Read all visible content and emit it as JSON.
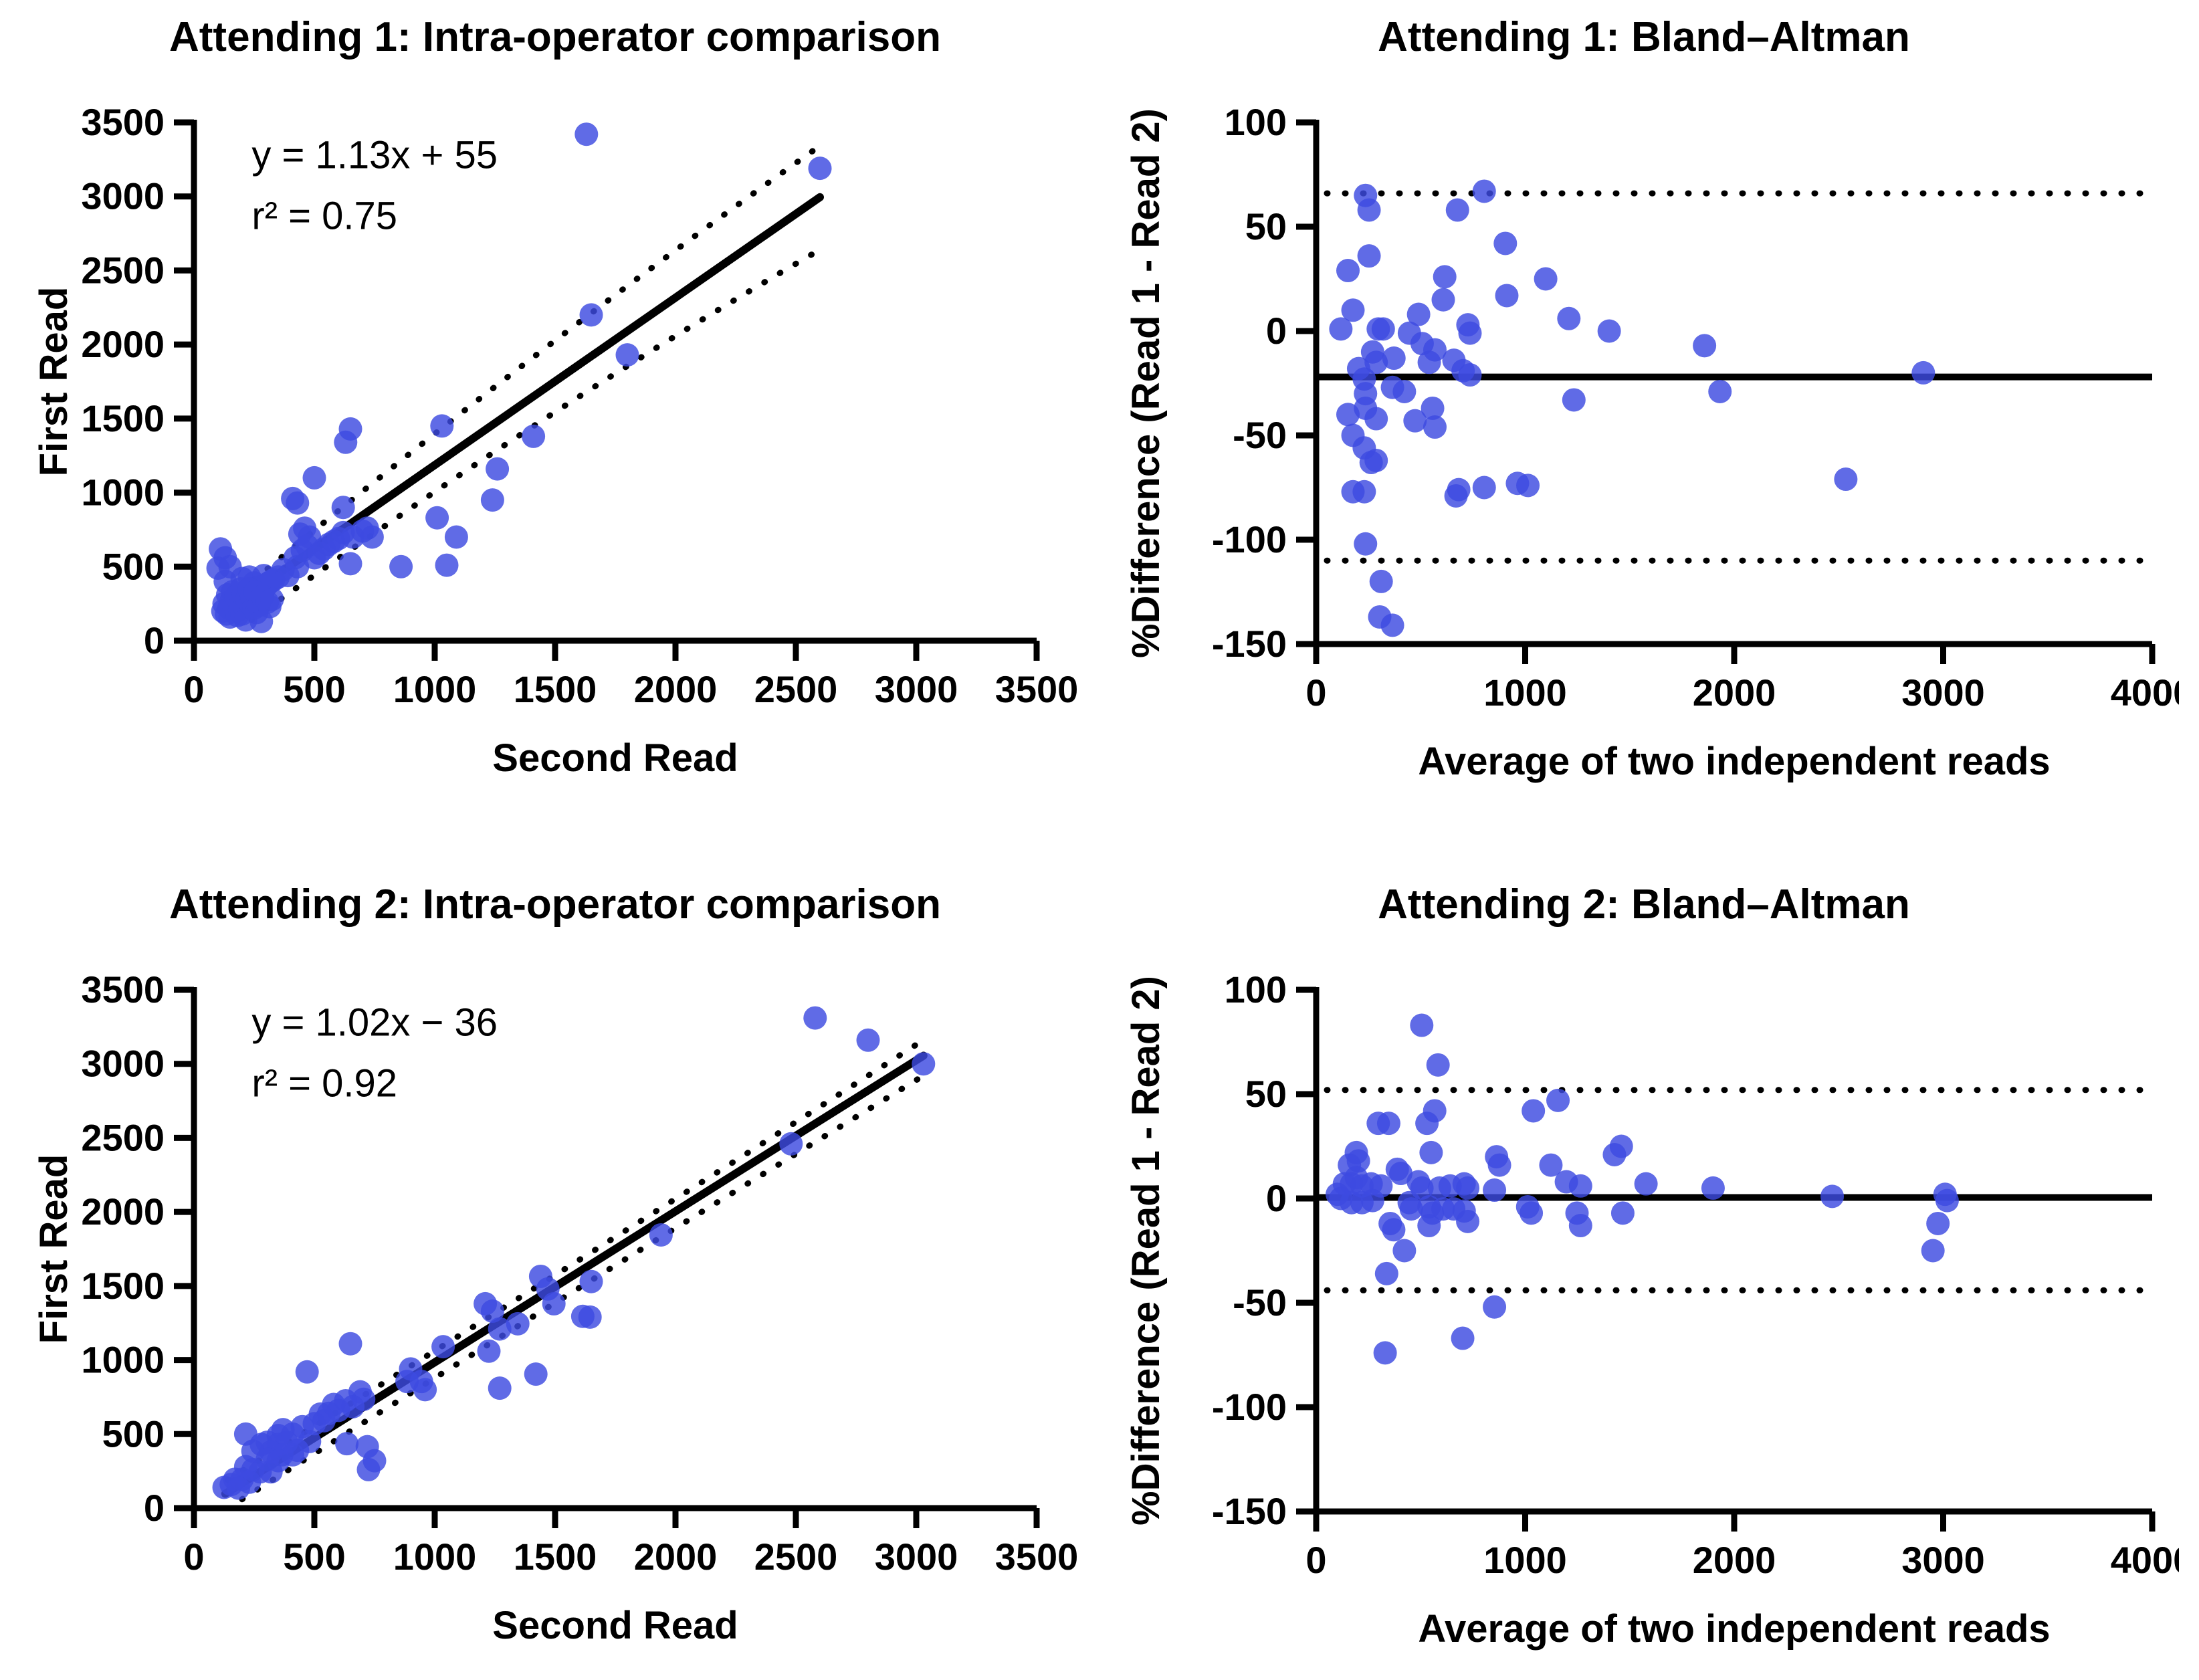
{
  "figure": {
    "background": "#ffffff",
    "ink_color": "#000000",
    "point_fill": "#3D4BE0"
  },
  "chart_data": [
    {
      "id": "attending1-scatter",
      "type": "scatter",
      "kind": "xy",
      "title": "Attending 1: Intra-operator comparison",
      "xlabel": "Second Read",
      "ylabel": "First Read",
      "xlim": [
        0,
        3500
      ],
      "ylim": [
        0,
        3500
      ],
      "xticks": [
        0,
        500,
        1000,
        1500,
        2000,
        2500,
        3000,
        3500
      ],
      "yticks": [
        0,
        500,
        1000,
        1500,
        2000,
        2500,
        3000,
        3500
      ],
      "grid": false,
      "annotations": [
        {
          "text": "y = 1.13x + 55",
          "x": 240,
          "y": 3280
        },
        {
          "text": "r² = 0.75",
          "x": 240,
          "y": 2870
        }
      ],
      "regression": {
        "solid": [
          [
            150,
            225
          ],
          [
            2600,
            2995
          ]
        ],
        "band_upper": [
          [
            190,
            330
          ],
          [
            1350,
            1900
          ],
          [
            2590,
            3330
          ]
        ],
        "band_lower": [
          [
            240,
            140
          ],
          [
            1450,
            1560
          ],
          [
            2600,
            2640
          ]
        ]
      },
      "points": [
        [
          1630,
          3420
        ],
        [
          2600,
          3190
        ],
        [
          1650,
          2200
        ],
        [
          1800,
          1930
        ],
        [
          1030,
          1450
        ],
        [
          650,
          1430
        ],
        [
          630,
          1340
        ],
        [
          1410,
          1380
        ],
        [
          1260,
          1160
        ],
        [
          500,
          1100
        ],
        [
          410,
          960
        ],
        [
          430,
          930
        ],
        [
          1240,
          950
        ],
        [
          1010,
          830
        ],
        [
          1090,
          700
        ],
        [
          620,
          900
        ],
        [
          440,
          720
        ],
        [
          620,
          730
        ],
        [
          740,
          700
        ],
        [
          460,
          760
        ],
        [
          480,
          700
        ],
        [
          700,
          740
        ],
        [
          720,
          760
        ],
        [
          660,
          700
        ],
        [
          420,
          560
        ],
        [
          430,
          500
        ],
        [
          450,
          610
        ],
        [
          470,
          640
        ],
        [
          500,
          560
        ],
        [
          520,
          590
        ],
        [
          540,
          620
        ],
        [
          560,
          650
        ],
        [
          580,
          670
        ],
        [
          600,
          690
        ],
        [
          390,
          440
        ],
        [
          370,
          480
        ],
        [
          350,
          430
        ],
        [
          330,
          410
        ],
        [
          310,
          390
        ],
        [
          290,
          440
        ],
        [
          230,
          430
        ],
        [
          200,
          420
        ],
        [
          250,
          390
        ],
        [
          270,
          360
        ],
        [
          300,
          370
        ],
        [
          320,
          400
        ],
        [
          110,
          620
        ],
        [
          100,
          490
        ],
        [
          130,
          560
        ],
        [
          130,
          400
        ],
        [
          195,
          350
        ],
        [
          150,
          500
        ],
        [
          650,
          520
        ],
        [
          860,
          500
        ],
        [
          1050,
          510
        ],
        [
          120,
          200
        ],
        [
          125,
          250
        ],
        [
          135,
          180
        ],
        [
          140,
          310
        ],
        [
          145,
          220
        ],
        [
          150,
          160
        ],
        [
          155,
          270
        ],
        [
          160,
          330
        ],
        [
          170,
          240
        ],
        [
          175,
          300
        ],
        [
          180,
          170
        ],
        [
          190,
          210
        ],
        [
          195,
          260
        ],
        [
          200,
          180
        ],
        [
          205,
          320
        ],
        [
          210,
          230
        ],
        [
          215,
          140
        ],
        [
          220,
          280
        ],
        [
          230,
          350
        ],
        [
          235,
          250
        ],
        [
          240,
          300
        ],
        [
          250,
          220
        ],
        [
          255,
          330
        ],
        [
          260,
          190
        ],
        [
          270,
          240
        ],
        [
          280,
          130
        ],
        [
          285,
          300
        ],
        [
          305,
          260
        ],
        [
          315,
          230
        ],
        [
          325,
          280
        ]
      ]
    },
    {
      "id": "attending1-bland-altman",
      "type": "scatter",
      "kind": "ba",
      "title": "Attending 1: Bland–Altman",
      "xlabel": "Average of two independent reads",
      "ylabel": "%Difference (Read 1 - Read 2)",
      "xlim": [
        0,
        4000
      ],
      "ylim": [
        -150,
        100
      ],
      "xticks": [
        0,
        1000,
        2000,
        3000,
        4000
      ],
      "yticks": [
        100,
        50,
        0,
        -50,
        -100,
        -150
      ],
      "grid": false,
      "mean_line": -22,
      "loa_upper": 66,
      "loa_lower": -110,
      "points": [
        [
          236,
          65
        ],
        [
          253,
          58
        ],
        [
          676,
          58
        ],
        [
          804,
          67
        ],
        [
          905,
          42
        ],
        [
          253,
          36
        ],
        [
          152,
          29
        ],
        [
          615,
          26
        ],
        [
          1098,
          25
        ],
        [
          912,
          17
        ],
        [
          608,
          15
        ],
        [
          176,
          10
        ],
        [
          490,
          8
        ],
        [
          1209,
          6
        ],
        [
          118,
          1
        ],
        [
          297,
          1
        ],
        [
          321,
          1
        ],
        [
          446,
          -1
        ],
        [
          726,
          3
        ],
        [
          736,
          -1
        ],
        [
          1402,
          0
        ],
        [
          507,
          -6
        ],
        [
          568,
          -9
        ],
        [
          1858,
          -7
        ],
        [
          270,
          -10
        ],
        [
          372,
          -13
        ],
        [
          287,
          -15
        ],
        [
          541,
          -15
        ],
        [
          659,
          -14
        ],
        [
          703,
          -19
        ],
        [
          203,
          -18
        ],
        [
          736,
          -21
        ],
        [
          2905,
          -20
        ],
        [
          230,
          -23
        ],
        [
          365,
          -27
        ],
        [
          422,
          -29
        ],
        [
          236,
          -30
        ],
        [
          1932,
          -29
        ],
        [
          236,
          -37
        ],
        [
          1233,
          -33
        ],
        [
          287,
          -42
        ],
        [
          557,
          -37
        ],
        [
          152,
          -40
        ],
        [
          473,
          -43
        ],
        [
          568,
          -46
        ],
        [
          176,
          -50
        ],
        [
          230,
          -56
        ],
        [
          287,
          -62
        ],
        [
          263,
          -63
        ],
        [
          176,
          -77
        ],
        [
          230,
          -77
        ],
        [
          669,
          -79
        ],
        [
          682,
          -76
        ],
        [
          804,
          -75
        ],
        [
          963,
          -73
        ],
        [
          1013,
          -74
        ],
        [
          2534,
          -71
        ],
        [
          236,
          -102
        ],
        [
          311,
          -120
        ],
        [
          304,
          -137
        ],
        [
          365,
          -141
        ]
      ]
    },
    {
      "id": "attending2-scatter",
      "type": "scatter",
      "kind": "xy",
      "title": "Attending 2: Intra-operator comparison",
      "xlabel": "Second Read",
      "ylabel": "First Read",
      "xlim": [
        0,
        3500
      ],
      "ylim": [
        0,
        3500
      ],
      "xticks": [
        0,
        500,
        1000,
        1500,
        2000,
        2500,
        3000,
        3500
      ],
      "yticks": [
        0,
        500,
        1000,
        1500,
        2000,
        2500,
        3000,
        3500
      ],
      "grid": false,
      "annotations": [
        {
          "text": "y = 1.02x − 36",
          "x": 240,
          "y": 3280
        },
        {
          "text": "r² = 0.92",
          "x": 240,
          "y": 2870
        }
      ],
      "regression": {
        "solid": [
          [
            130,
            97
          ],
          [
            3030,
            3055
          ]
        ],
        "band_upper": [
          [
            140,
            190
          ],
          [
            1580,
            1640
          ],
          [
            3010,
            3140
          ]
        ],
        "band_lower": [
          [
            200,
            60
          ],
          [
            1620,
            1520
          ],
          [
            3040,
            2930
          ]
        ]
      },
      "points": [
        [
          2580,
          3310
        ],
        [
          2800,
          3160
        ],
        [
          3030,
          3000
        ],
        [
          2480,
          2460
        ],
        [
          1940,
          1845
        ],
        [
          1440,
          1565
        ],
        [
          1470,
          1480
        ],
        [
          1650,
          1530
        ],
        [
          1495,
          1380
        ],
        [
          1210,
          1380
        ],
        [
          1240,
          1330
        ],
        [
          1615,
          1295
        ],
        [
          1645,
          1290
        ],
        [
          1270,
          1210
        ],
        [
          1345,
          1245
        ],
        [
          1035,
          1090
        ],
        [
          1225,
          1060
        ],
        [
          650,
          1110
        ],
        [
          470,
          920
        ],
        [
          1420,
          905
        ],
        [
          1270,
          810
        ],
        [
          900,
          940
        ],
        [
          885,
          855
        ],
        [
          945,
          855
        ],
        [
          960,
          800
        ],
        [
          690,
          785
        ],
        [
          705,
          735
        ],
        [
          630,
          725
        ],
        [
          660,
          685
        ],
        [
          525,
          635
        ],
        [
          540,
          590
        ],
        [
          370,
          530
        ],
        [
          350,
          490
        ],
        [
          215,
          500
        ],
        [
          280,
          430
        ],
        [
          305,
          445
        ],
        [
          350,
          430
        ],
        [
          385,
          445
        ],
        [
          635,
          435
        ],
        [
          720,
          415
        ],
        [
          245,
          385
        ],
        [
          320,
          380
        ],
        [
          365,
          360
        ],
        [
          410,
          360
        ],
        [
          305,
          330
        ],
        [
          350,
          320
        ],
        [
          750,
          320
        ],
        [
          725,
          260
        ],
        [
          215,
          280
        ],
        [
          245,
          260
        ],
        [
          275,
          245
        ],
        [
          320,
          245
        ],
        [
          170,
          195
        ],
        [
          200,
          195
        ],
        [
          230,
          175
        ],
        [
          155,
          160
        ],
        [
          125,
          140
        ],
        [
          185,
          135
        ],
        [
          410,
          500
        ],
        [
          450,
          550
        ],
        [
          500,
          570
        ],
        [
          560,
          640
        ],
        [
          600,
          660
        ],
        [
          580,
          700
        ],
        [
          480,
          450
        ],
        [
          430,
          390
        ]
      ]
    },
    {
      "id": "attending2-bland-altman",
      "type": "scatter",
      "kind": "ba",
      "title": "Attending 2: Bland–Altman",
      "xlabel": "Average of two independent reads",
      "ylabel": "%Difference (Read 1 - Read 2)",
      "xlim": [
        0,
        4000
      ],
      "ylim": [
        -150,
        100
      ],
      "xticks": [
        0,
        1000,
        2000,
        3000,
        4000
      ],
      "yticks": [
        100,
        50,
        0,
        -50,
        -100,
        -150
      ],
      "grid": false,
      "mean_line": 0.5,
      "loa_upper": 52,
      "loa_lower": -44,
      "points": [
        [
          505,
          83
        ],
        [
          583,
          64
        ],
        [
          1157,
          47
        ],
        [
          1039,
          42
        ],
        [
          567,
          42
        ],
        [
          297,
          36
        ],
        [
          347,
          36
        ],
        [
          530,
          36
        ],
        [
          1460,
          25
        ],
        [
          1427,
          21
        ],
        [
          192,
          22
        ],
        [
          202,
          18
        ],
        [
          550,
          22
        ],
        [
          863,
          20
        ],
        [
          877,
          16
        ],
        [
          1123,
          16
        ],
        [
          159,
          16
        ],
        [
          388,
          14
        ],
        [
          405,
          12
        ],
        [
          192,
          10
        ],
        [
          135,
          7
        ],
        [
          169,
          7
        ],
        [
          219,
          6
        ],
        [
          263,
          7
        ],
        [
          310,
          6
        ],
        [
          489,
          8
        ],
        [
          506,
          5
        ],
        [
          590,
          5
        ],
        [
          641,
          6
        ],
        [
          708,
          7
        ],
        [
          725,
          5
        ],
        [
          853,
          4
        ],
        [
          1197,
          8
        ],
        [
          1265,
          6
        ],
        [
          1578,
          7
        ],
        [
          1899,
          5
        ],
        [
          2469,
          1
        ],
        [
          3009,
          2
        ],
        [
          3019,
          -1
        ],
        [
          101,
          2
        ],
        [
          118,
          0
        ],
        [
          169,
          -2
        ],
        [
          219,
          -2
        ],
        [
          270,
          -1
        ],
        [
          445,
          -2
        ],
        [
          455,
          -5
        ],
        [
          540,
          -4
        ],
        [
          556,
          -7
        ],
        [
          607,
          -5
        ],
        [
          658,
          -5
        ],
        [
          708,
          -6
        ],
        [
          1012,
          -4
        ],
        [
          1029,
          -7
        ],
        [
          1248,
          -7
        ],
        [
          1467,
          -7
        ],
        [
          354,
          -12
        ],
        [
          371,
          -15
        ],
        [
          540,
          -13
        ],
        [
          725,
          -11
        ],
        [
          1265,
          -13
        ],
        [
          2975,
          -12
        ],
        [
          422,
          -25
        ],
        [
          2951,
          -25
        ],
        [
          337,
          -36
        ],
        [
          853,
          -52
        ],
        [
          701,
          -67
        ],
        [
          330,
          -74
        ]
      ]
    }
  ]
}
